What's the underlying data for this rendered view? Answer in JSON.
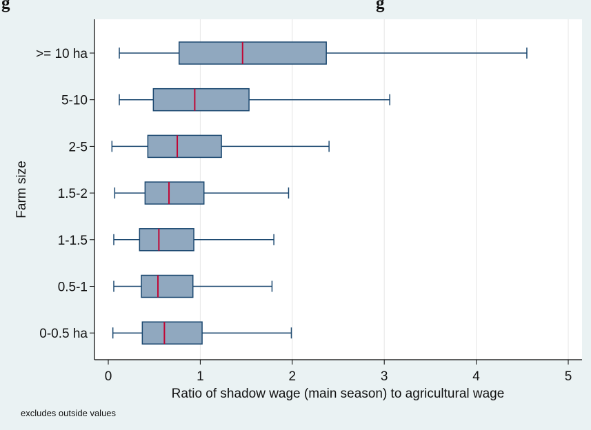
{
  "top_title_fragment_left": "g",
  "top_title_fragment_right": "g",
  "chart_data": {
    "type": "boxplot",
    "orientation": "horizontal",
    "xlabel": "Ratio of shadow wage (main season) to agricultural wage",
    "ylabel": "Farm size",
    "note": "excludes outside values",
    "xlim": [
      0,
      5
    ],
    "xticks": [
      0,
      1,
      2,
      3,
      4,
      5
    ],
    "grid": true,
    "categories": [
      ">= 10 ha",
      "5-10",
      "2-5",
      "1.5-2",
      "1-1.5",
      "0.5-1",
      "0-0.5 ha"
    ],
    "boxes": [
      {
        "category": ">= 10 ha",
        "whisker_low": 0.12,
        "q1": 0.77,
        "median": 1.46,
        "q3": 2.37,
        "whisker_high": 4.55
      },
      {
        "category": "5-10",
        "whisker_low": 0.12,
        "q1": 0.49,
        "median": 0.94,
        "q3": 1.53,
        "whisker_high": 3.06
      },
      {
        "category": "2-5",
        "whisker_low": 0.04,
        "q1": 0.43,
        "median": 0.75,
        "q3": 1.23,
        "whisker_high": 2.4
      },
      {
        "category": "1.5-2",
        "whisker_low": 0.07,
        "q1": 0.4,
        "median": 0.66,
        "q3": 1.04,
        "whisker_high": 1.96
      },
      {
        "category": "1-1.5",
        "whisker_low": 0.06,
        "q1": 0.34,
        "median": 0.55,
        "q3": 0.93,
        "whisker_high": 1.8
      },
      {
        "category": "0.5-1",
        "whisker_low": 0.06,
        "q1": 0.36,
        "median": 0.54,
        "q3": 0.92,
        "whisker_high": 1.78
      },
      {
        "category": "0-0.5 ha",
        "whisker_low": 0.05,
        "q1": 0.37,
        "median": 0.61,
        "q3": 1.02,
        "whisker_high": 1.99
      }
    ],
    "colors": {
      "background": "#eaf2f3",
      "plot_background": "#ffffff",
      "box_fill": "#90a8bf",
      "box_stroke": "#1a476f",
      "median": "#c10534",
      "grid": "#e5e5e5",
      "axis": "#000000"
    }
  }
}
